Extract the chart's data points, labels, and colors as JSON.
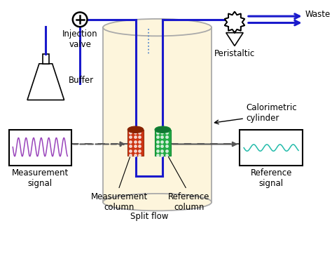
{
  "bg_color": "#ffffff",
  "tube_color": "#1a1acc",
  "tube_lw": 2.2,
  "cylinder_fill": "#fdf5dc",
  "cylinder_edge": "#aaaaaa",
  "cyl_edge_lw": 1.3,
  "dash_color": "#555555",
  "meas_signal_color": "#9944bb",
  "ref_signal_color": "#22bbaa",
  "meas_col_color": "#cc3311",
  "ref_col_color": "#22aa44",
  "labels": {
    "injection_valve": "Injection\nvalve",
    "buffer": "Buffer",
    "peristaltic": "Peristaltic",
    "waste": "Waste",
    "calorimetric": "Calorimetric\ncylinder",
    "measurement_signal": "Measurement\nsignal",
    "reference_signal": "Reference\nsignal",
    "measurement_column": "Measurement\ncolumn",
    "reference_column": "Reference\ncolumn",
    "split_flow": "Split flow"
  },
  "figsize": [
    4.74,
    3.62
  ],
  "dpi": 100
}
